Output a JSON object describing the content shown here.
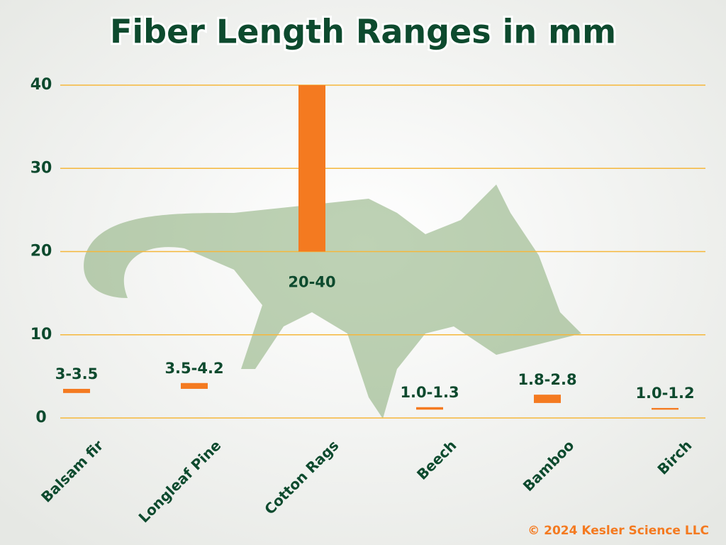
{
  "chart_data": {
    "type": "floating-bar",
    "title": "Fiber Length Ranges in mm",
    "categories": [
      "Balsam fir",
      "Longleaf Pine",
      "Cotton Rags",
      "Beech",
      "Bamboo",
      "Birch"
    ],
    "low": [
      3,
      3.5,
      20,
      1.0,
      1.8,
      1.0
    ],
    "high": [
      3.5,
      4.2,
      40,
      1.3,
      2.8,
      1.2
    ],
    "value_labels": [
      "3-3.5",
      "3.5-4.2",
      "20-40",
      "1.0-1.3",
      "1.8-2.8",
      "1.0-1.2"
    ],
    "color": "#f47a20",
    "ylim": [
      0,
      40
    ],
    "yticks": [
      0,
      10,
      20,
      30,
      40
    ],
    "grid": true,
    "grid_color": "#f5b73b",
    "footer": "© 2024 Kesler Science LLC"
  }
}
